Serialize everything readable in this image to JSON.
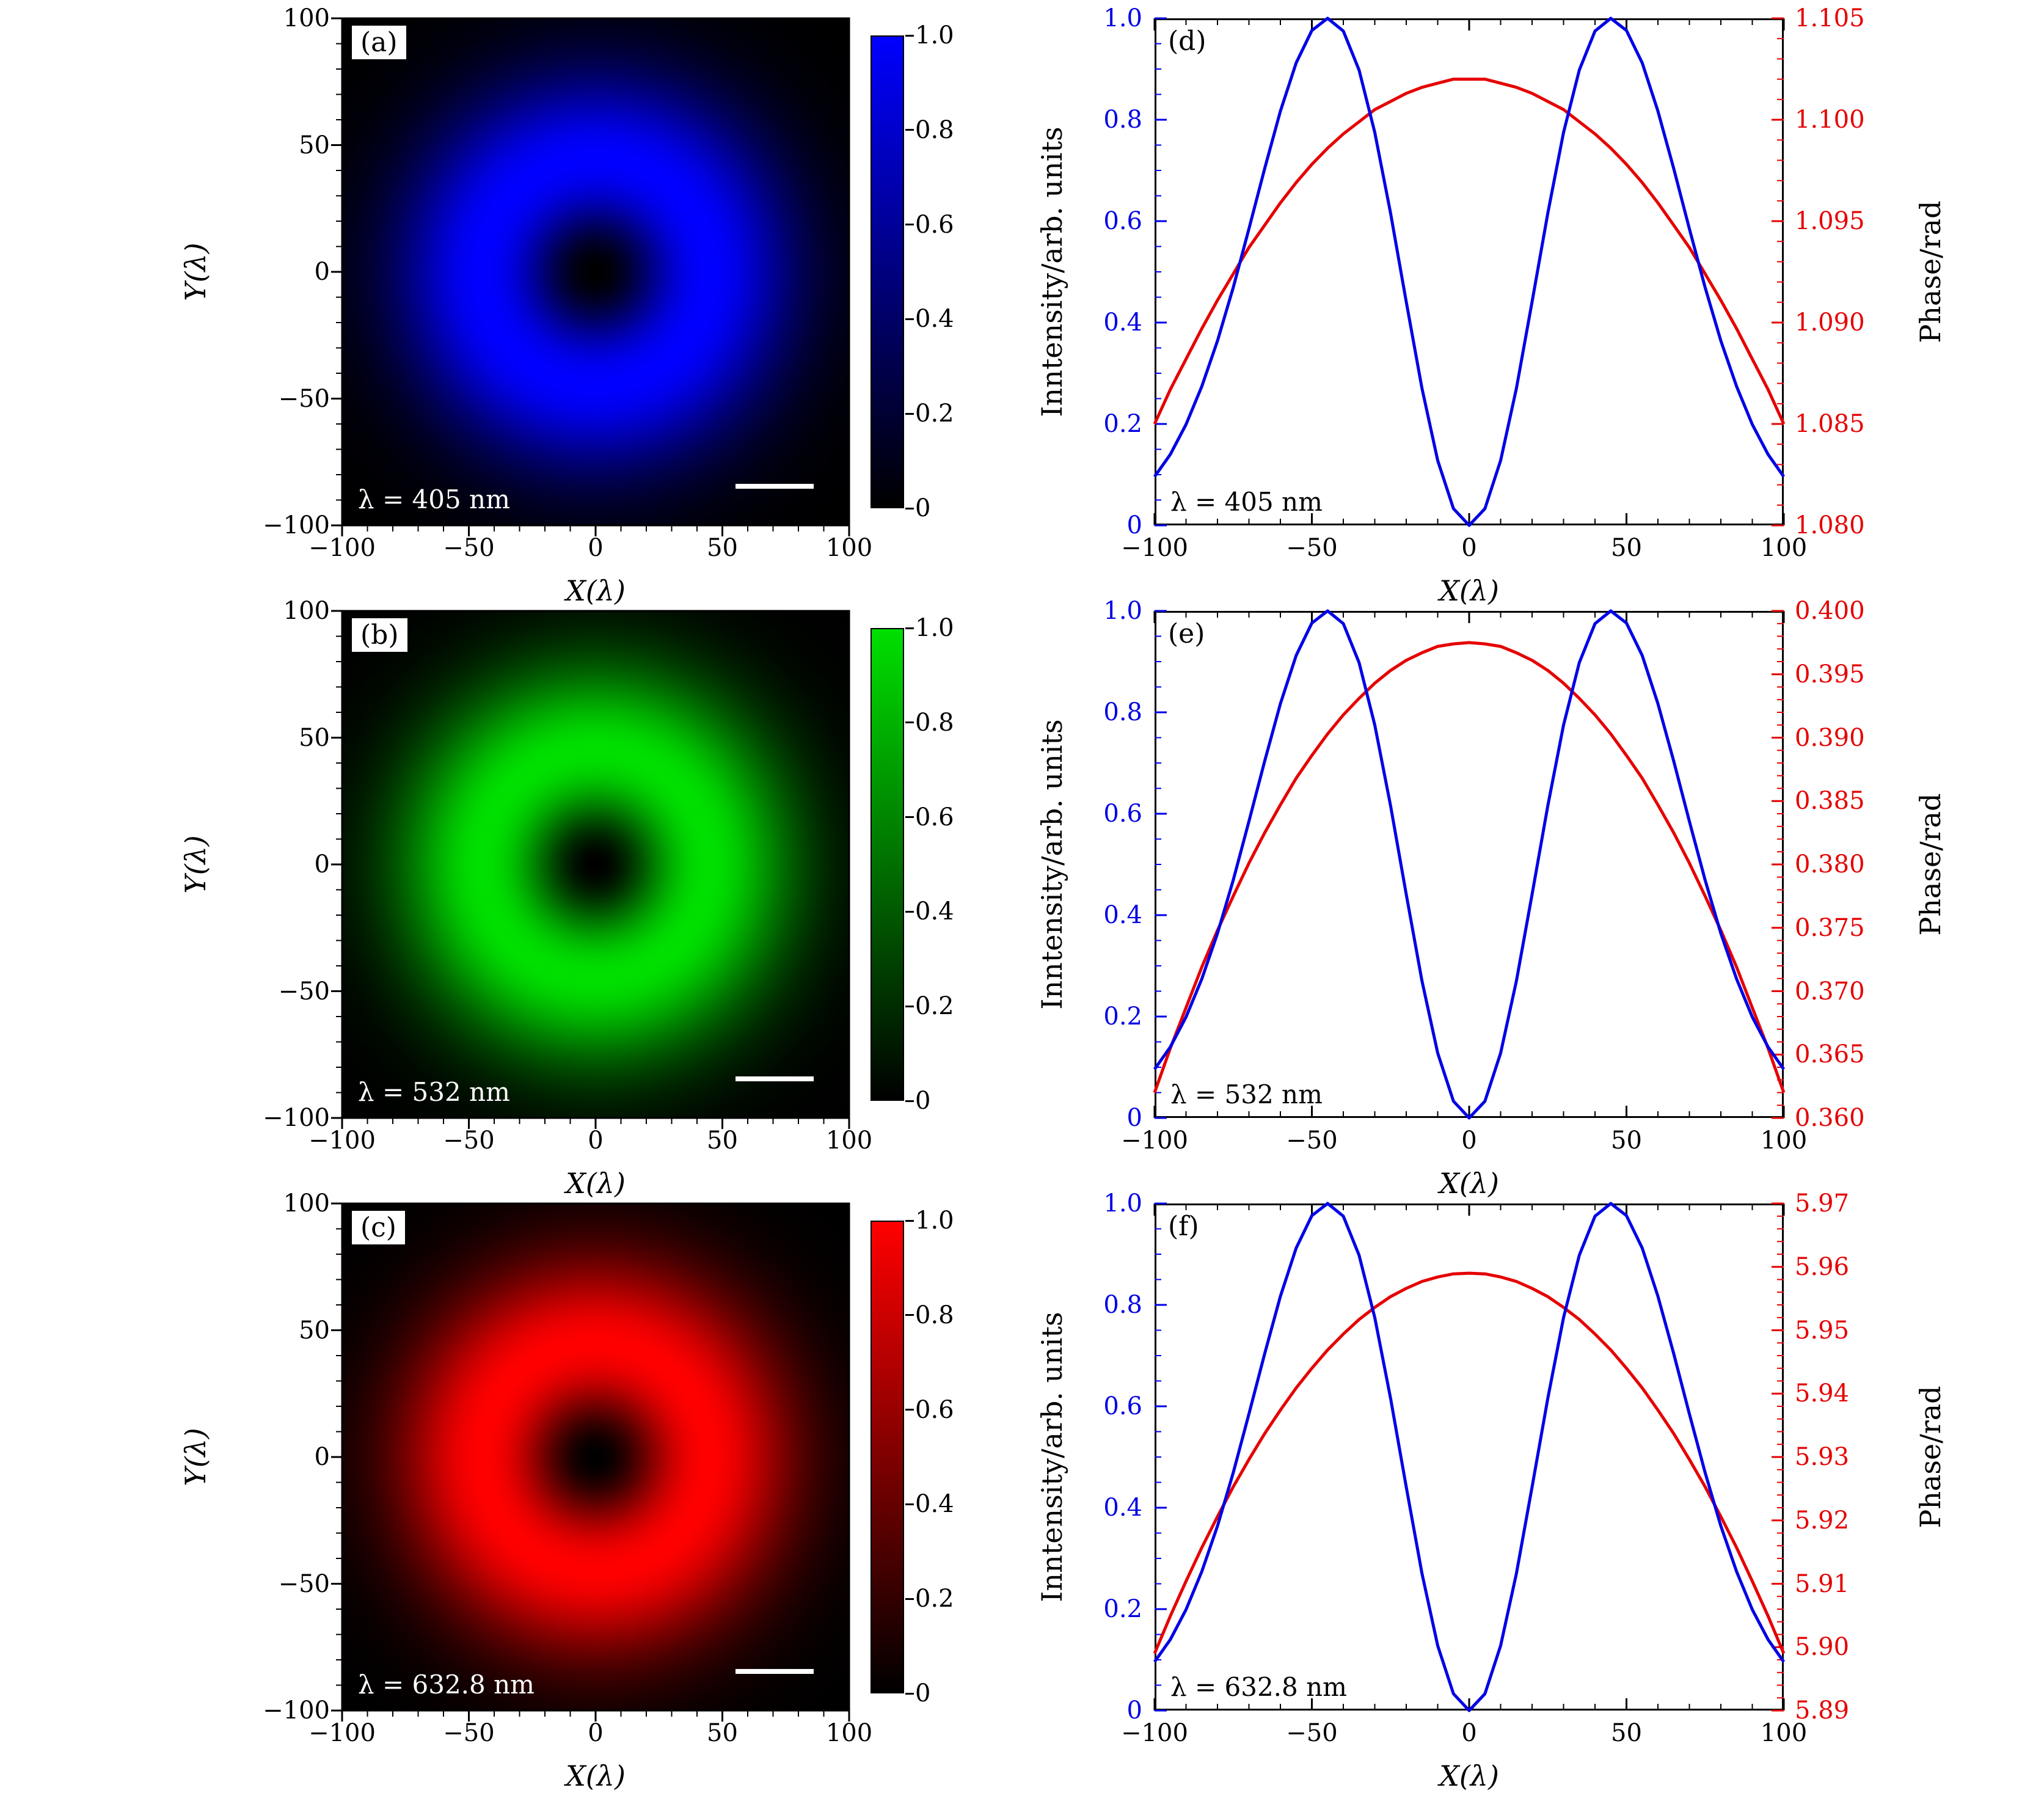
{
  "colors": {
    "blue": "#0000e6",
    "red": "#e60000",
    "axes": "#000000",
    "background": "#ffffff",
    "scalebar": "#ffffff"
  },
  "chart_data": [
    {
      "type": "heatmap",
      "panel_label": "(a)",
      "wavelength_label": "λ = 405 nm",
      "color": "#0000ff",
      "ring_radius": 45,
      "xlabel": "X(λ)",
      "ylabel": "Y(λ)",
      "xlim": [
        -100,
        100
      ],
      "ylim": [
        -100,
        100
      ],
      "xticks": [
        "-100",
        "-50",
        "0",
        "50",
        "100"
      ],
      "yticks": [
        "-100",
        "-50",
        "0",
        "50",
        "100"
      ],
      "colorbar_ticks": [
        "0",
        "0.2",
        "0.4",
        "0.6",
        "0.8",
        "1.0"
      ],
      "colorbar_range": [
        0,
        1.0
      ],
      "description": "Donut-shaped vortex beam intensity, dark core at center, bright ring radius ≈ 45λ, colormap black→blue"
    },
    {
      "type": "heatmap",
      "panel_label": "(b)",
      "wavelength_label": "λ = 532 nm",
      "color": "#00e000",
      "ring_radius": 45,
      "xlabel": "X(λ)",
      "ylabel": "Y(λ)",
      "xlim": [
        -100,
        100
      ],
      "ylim": [
        -100,
        100
      ],
      "xticks": [
        "-100",
        "-50",
        "0",
        "50",
        "100"
      ],
      "yticks": [
        "-100",
        "-50",
        "0",
        "50",
        "100"
      ],
      "colorbar_ticks": [
        "0",
        "0.2",
        "0.4",
        "0.6",
        "0.8",
        "1.0"
      ],
      "colorbar_range": [
        0,
        1.0
      ],
      "description": "Donut-shaped vortex beam intensity, dark core at center, bright ring radius ≈ 45λ, colormap black→green"
    },
    {
      "type": "heatmap",
      "panel_label": "(c)",
      "wavelength_label": "λ = 632.8 nm",
      "color": "#ff0000",
      "ring_radius": 45,
      "xlabel": "X(λ)",
      "ylabel": "Y(λ)",
      "xlim": [
        -100,
        100
      ],
      "ylim": [
        -100,
        100
      ],
      "xticks": [
        "-100",
        "-50",
        "0",
        "50",
        "100"
      ],
      "yticks": [
        "-100",
        "-50",
        "0",
        "50",
        "100"
      ],
      "colorbar_ticks": [
        "0",
        "0.2",
        "0.4",
        "0.6",
        "0.8",
        "1.0"
      ],
      "colorbar_range": [
        0,
        1.0
      ],
      "description": "Donut-shaped vortex beam intensity, dark core at center, bright ring radius ≈ 45λ, colormap black→red"
    },
    {
      "type": "line",
      "panel_label": "(d)",
      "wavelength_label": "λ = 405 nm",
      "xlabel": "X(λ)",
      "ylabel_left": "Inntensity/arb. units",
      "ylabel_right": "Phase/rad",
      "xlim": [
        -100,
        100
      ],
      "ylim_left": [
        0,
        1.0
      ],
      "ylim_right": [
        1.08,
        1.105
      ],
      "xticks": [
        "-100",
        "-50",
        "0",
        "50",
        "100"
      ],
      "yticks_left": [
        "0",
        "0.2",
        "0.4",
        "0.6",
        "0.8",
        "1.0"
      ],
      "yticks_right": [
        "1.080",
        "1.085",
        "1.090",
        "1.095",
        "1.100",
        "1.105"
      ],
      "series": [
        {
          "name": "intensity",
          "color": "#0000e6",
          "axis": "left"
        },
        {
          "name": "phase",
          "color": "#e60000",
          "axis": "right"
        }
      ],
      "x": [
        -100,
        -95,
        -90,
        -85,
        -80,
        -75,
        -70,
        -65,
        -60,
        -55,
        -50,
        -45,
        -40,
        -35,
        -30,
        -25,
        -20,
        -15,
        -10,
        -5,
        0,
        5,
        10,
        15,
        20,
        25,
        30,
        35,
        40,
        45,
        50,
        55,
        60,
        65,
        70,
        75,
        80,
        85,
        90,
        95,
        100
      ],
      "intensity": [
        0.096,
        0.14,
        0.199,
        0.274,
        0.364,
        0.469,
        0.585,
        0.704,
        0.817,
        0.912,
        0.976,
        1.0,
        0.975,
        0.898,
        0.775,
        0.616,
        0.441,
        0.27,
        0.128,
        0.033,
        0.0,
        0.033,
        0.128,
        0.27,
        0.441,
        0.616,
        0.775,
        0.898,
        0.975,
        1.0,
        0.976,
        0.912,
        0.817,
        0.704,
        0.585,
        0.469,
        0.364,
        0.274,
        0.199,
        0.14,
        0.096
      ],
      "phase": [
        1.085,
        1.0867,
        1.0882,
        1.0897,
        1.0911,
        1.0924,
        1.0937,
        1.0948,
        1.0959,
        1.0969,
        1.0978,
        1.0986,
        1.0993,
        1.0999,
        1.1005,
        1.1009,
        1.1013,
        1.1016,
        1.1018,
        1.102,
        1.102,
        1.102,
        1.1018,
        1.1016,
        1.1013,
        1.1009,
        1.1005,
        1.0999,
        1.0993,
        1.0986,
        1.0978,
        1.0969,
        1.0959,
        1.0948,
        1.0937,
        1.0924,
        1.0911,
        1.0897,
        1.0882,
        1.0867,
        1.085
      ]
    },
    {
      "type": "line",
      "panel_label": "(e)",
      "wavelength_label": "λ = 532 nm",
      "xlabel": "X(λ)",
      "ylabel_left": "Inntensity/arb. units",
      "ylabel_right": "Phase/rad",
      "xlim": [
        -100,
        100
      ],
      "ylim_left": [
        0,
        1.0
      ],
      "ylim_right": [
        0.36,
        0.4
      ],
      "xticks": [
        "-100",
        "-50",
        "0",
        "50",
        "100"
      ],
      "yticks_left": [
        "0",
        "0.2",
        "0.4",
        "0.6",
        "0.8",
        "1.0"
      ],
      "yticks_right": [
        "0.360",
        "0.365",
        "0.370",
        "0.375",
        "0.380",
        "0.385",
        "0.390",
        "0.395",
        "0.400"
      ],
      "series": [
        {
          "name": "intensity",
          "color": "#0000e6",
          "axis": "left"
        },
        {
          "name": "phase",
          "color": "#e60000",
          "axis": "right"
        }
      ],
      "x": [
        -100,
        -95,
        -90,
        -85,
        -80,
        -75,
        -70,
        -65,
        -60,
        -55,
        -50,
        -45,
        -40,
        -35,
        -30,
        -25,
        -20,
        -15,
        -10,
        -5,
        0,
        5,
        10,
        15,
        20,
        25,
        30,
        35,
        40,
        45,
        50,
        55,
        60,
        65,
        70,
        75,
        80,
        85,
        90,
        95,
        100
      ],
      "intensity": [
        0.096,
        0.14,
        0.199,
        0.274,
        0.364,
        0.469,
        0.585,
        0.704,
        0.817,
        0.912,
        0.976,
        1.0,
        0.975,
        0.898,
        0.775,
        0.616,
        0.441,
        0.27,
        0.128,
        0.033,
        0.0,
        0.033,
        0.128,
        0.27,
        0.441,
        0.616,
        0.775,
        0.898,
        0.975,
        1.0,
        0.976,
        0.912,
        0.817,
        0.704,
        0.585,
        0.469,
        0.364,
        0.274,
        0.199,
        0.14,
        0.096
      ],
      "phase": [
        0.362,
        0.3655,
        0.3687,
        0.3719,
        0.3748,
        0.3775,
        0.3801,
        0.3825,
        0.3847,
        0.3868,
        0.3886,
        0.3903,
        0.3918,
        0.3931,
        0.3943,
        0.3953,
        0.3961,
        0.3967,
        0.3972,
        0.3974,
        0.3975,
        0.3974,
        0.3972,
        0.3967,
        0.3961,
        0.3953,
        0.3943,
        0.3931,
        0.3918,
        0.3903,
        0.3886,
        0.3868,
        0.3847,
        0.3825,
        0.3801,
        0.3775,
        0.3748,
        0.3719,
        0.3687,
        0.3655,
        0.362
      ]
    },
    {
      "type": "line",
      "panel_label": "(f)",
      "wavelength_label": "λ = 632.8 nm",
      "xlabel": "X(λ)",
      "ylabel_left": "Inntensity/arb. units",
      "ylabel_right": "Phase/rad",
      "xlim": [
        -100,
        100
      ],
      "ylim_left": [
        0,
        1.0
      ],
      "ylim_right": [
        5.89,
        5.97
      ],
      "xticks": [
        "-100",
        "-50",
        "0",
        "50",
        "100"
      ],
      "yticks_left": [
        "0",
        "0.2",
        "0.4",
        "0.6",
        "0.8",
        "1.0"
      ],
      "yticks_right": [
        "5.89",
        "5.90",
        "5.91",
        "5.92",
        "5.93",
        "5.94",
        "5.95",
        "5.96",
        "5.97"
      ],
      "series": [
        {
          "name": "intensity",
          "color": "#0000e6",
          "axis": "left"
        },
        {
          "name": "phase",
          "color": "#e60000",
          "axis": "right"
        }
      ],
      "x": [
        -100,
        -95,
        -90,
        -85,
        -80,
        -75,
        -70,
        -65,
        -60,
        -55,
        -50,
        -45,
        -40,
        -35,
        -30,
        -25,
        -20,
        -15,
        -10,
        -5,
        0,
        5,
        10,
        15,
        20,
        25,
        30,
        35,
        40,
        45,
        50,
        55,
        60,
        65,
        70,
        75,
        80,
        85,
        90,
        95,
        100
      ],
      "intensity": [
        0.096,
        0.14,
        0.199,
        0.274,
        0.364,
        0.469,
        0.585,
        0.704,
        0.817,
        0.912,
        0.976,
        1.0,
        0.975,
        0.898,
        0.775,
        0.616,
        0.441,
        0.27,
        0.128,
        0.033,
        0.0,
        0.033,
        0.128,
        0.27,
        0.441,
        0.616,
        0.775,
        0.898,
        0.975,
        1.0,
        0.976,
        0.912,
        0.817,
        0.704,
        0.585,
        0.469,
        0.364,
        0.274,
        0.199,
        0.14,
        0.096
      ],
      "phase": [
        5.899,
        5.9049,
        5.9104,
        5.9157,
        5.9206,
        5.9253,
        5.9296,
        5.9337,
        5.9374,
        5.9409,
        5.944,
        5.9469,
        5.9494,
        5.9517,
        5.9536,
        5.9553,
        5.9566,
        5.9577,
        5.9584,
        5.9589,
        5.959,
        5.9589,
        5.9584,
        5.9577,
        5.9566,
        5.9553,
        5.9536,
        5.9517,
        5.9494,
        5.9469,
        5.944,
        5.9409,
        5.9374,
        5.9337,
        5.9296,
        5.9253,
        5.9206,
        5.9157,
        5.9104,
        5.9049,
        5.899
      ]
    }
  ]
}
